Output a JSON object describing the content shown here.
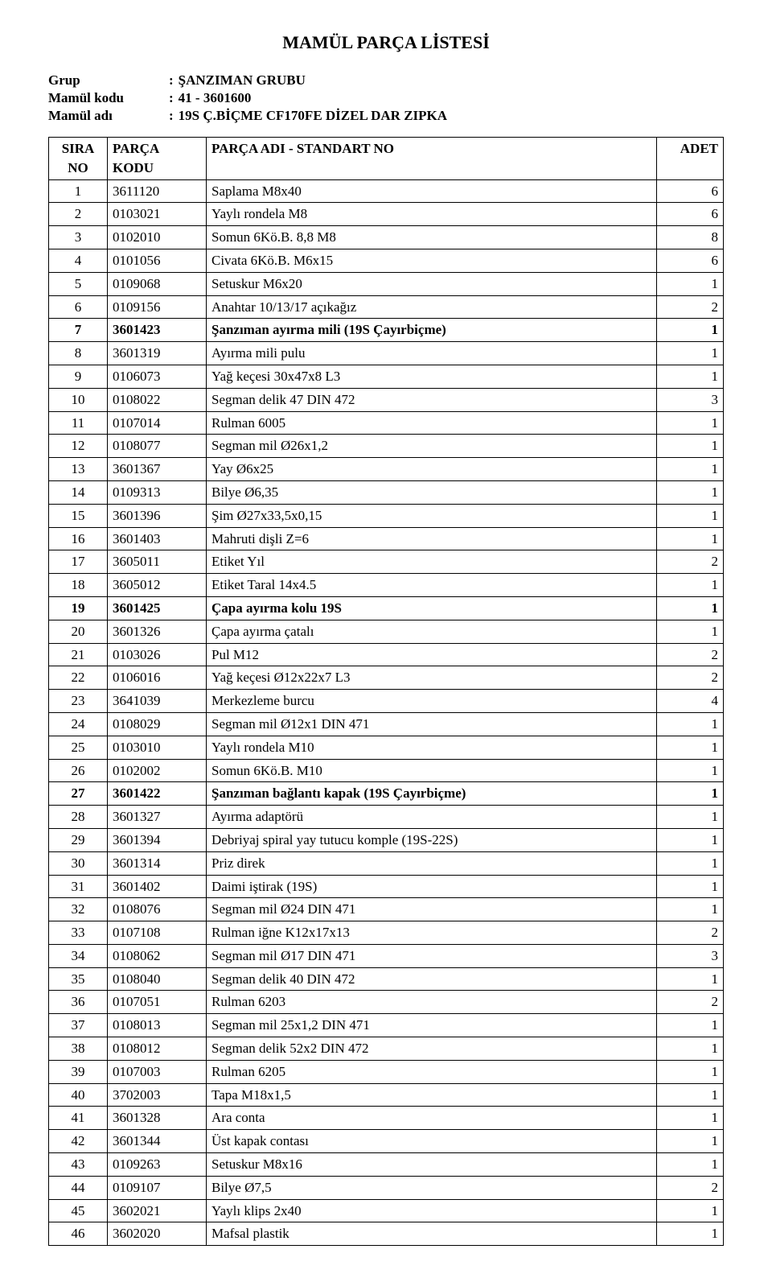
{
  "title": "MAMÜL PARÇA LİSTESİ",
  "meta": {
    "grup_label": "Grup",
    "grup_value": "ŞANZIMAN GRUBU",
    "mamul_kodu_label": "Mamül kodu",
    "mamul_kodu_value": "41 - 3601600",
    "mamul_adi_label": "Mamül adı",
    "mamul_adi_value": "19S Ç.BİÇME CF170FE DİZEL DAR ZIPKA"
  },
  "table": {
    "headers": {
      "sira": "SIRA NO",
      "kodu": "PARÇA KODU",
      "adi": "PARÇA ADI   -   STANDART NO",
      "adet": "ADET"
    },
    "rows": [
      {
        "no": "1",
        "kodu": "3611120",
        "adi": "Saplama M8x40",
        "adet": "6",
        "bold": false
      },
      {
        "no": "2",
        "kodu": "0103021",
        "adi": "Yaylı rondela M8",
        "adet": "6",
        "bold": false
      },
      {
        "no": "3",
        "kodu": "0102010",
        "adi": "Somun 6Kö.B. 8,8 M8",
        "adet": "8",
        "bold": false
      },
      {
        "no": "4",
        "kodu": "0101056",
        "adi": "Civata 6Kö.B. M6x15",
        "adet": "6",
        "bold": false
      },
      {
        "no": "5",
        "kodu": "0109068",
        "adi": "Setuskur M6x20",
        "adet": "1",
        "bold": false
      },
      {
        "no": "6",
        "kodu": "0109156",
        "adi": "Anahtar 10/13/17 açıkağız",
        "adet": "2",
        "bold": false
      },
      {
        "no": "7",
        "kodu": "3601423",
        "adi": "Şanzıman ayırma mili (19S Çayırbiçme)",
        "adet": "1",
        "bold": true
      },
      {
        "no": "8",
        "kodu": "3601319",
        "adi": "Ayırma mili pulu",
        "adet": "1",
        "bold": false
      },
      {
        "no": "9",
        "kodu": "0106073",
        "adi": "Yağ keçesi 30x47x8 L3",
        "adet": "1",
        "bold": false
      },
      {
        "no": "10",
        "kodu": "0108022",
        "adi": "Segman delik 47 DIN 472",
        "adet": "3",
        "bold": false
      },
      {
        "no": "11",
        "kodu": "0107014",
        "adi": "Rulman 6005",
        "adet": "1",
        "bold": false
      },
      {
        "no": "12",
        "kodu": "0108077",
        "adi": "Segman mil Ø26x1,2",
        "adet": "1",
        "bold": false
      },
      {
        "no": "13",
        "kodu": "3601367",
        "adi": "Yay Ø6x25",
        "adet": "1",
        "bold": false
      },
      {
        "no": "14",
        "kodu": "0109313",
        "adi": "Bilye Ø6,35",
        "adet": "1",
        "bold": false
      },
      {
        "no": "15",
        "kodu": "3601396",
        "adi": "Şim Ø27x33,5x0,15",
        "adet": "1",
        "bold": false
      },
      {
        "no": "16",
        "kodu": "3601403",
        "adi": "Mahruti dişli Z=6",
        "adet": "1",
        "bold": false
      },
      {
        "no": "17",
        "kodu": "3605011",
        "adi": "Etiket Yıl",
        "adet": "2",
        "bold": false
      },
      {
        "no": "18",
        "kodu": "3605012",
        "adi": "Etiket Taral 14x4.5",
        "adet": "1",
        "bold": false
      },
      {
        "no": "19",
        "kodu": "3601425",
        "adi": "Çapa ayırma kolu 19S",
        "adet": "1",
        "bold": true
      },
      {
        "no": "20",
        "kodu": "3601326",
        "adi": "Çapa ayırma çatalı",
        "adet": "1",
        "bold": false
      },
      {
        "no": "21",
        "kodu": "0103026",
        "adi": "Pul M12",
        "adet": "2",
        "bold": false
      },
      {
        "no": "22",
        "kodu": "0106016",
        "adi": "Yağ keçesi Ø12x22x7 L3",
        "adet": "2",
        "bold": false
      },
      {
        "no": "23",
        "kodu": "3641039",
        "adi": "Merkezleme burcu",
        "adet": "4",
        "bold": false
      },
      {
        "no": "24",
        "kodu": "0108029",
        "adi": "Segman mil Ø12x1 DIN 471",
        "adet": "1",
        "bold": false
      },
      {
        "no": "25",
        "kodu": "0103010",
        "adi": "Yaylı rondela M10",
        "adet": "1",
        "bold": false
      },
      {
        "no": "26",
        "kodu": "0102002",
        "adi": "Somun 6Kö.B. M10",
        "adet": "1",
        "bold": false
      },
      {
        "no": "27",
        "kodu": "3601422",
        "adi": "Şanzıman bağlantı kapak (19S Çayırbiçme)",
        "adet": "1",
        "bold": true
      },
      {
        "no": "28",
        "kodu": "3601327",
        "adi": "Ayırma adaptörü",
        "adet": "1",
        "bold": false
      },
      {
        "no": "29",
        "kodu": "3601394",
        "adi": "Debriyaj spiral yay tutucu komple (19S-22S)",
        "adet": "1",
        "bold": false
      },
      {
        "no": "30",
        "kodu": "3601314",
        "adi": "Priz direk",
        "adet": "1",
        "bold": false
      },
      {
        "no": "31",
        "kodu": "3601402",
        "adi": "Daimi iştirak (19S)",
        "adet": "1",
        "bold": false
      },
      {
        "no": "32",
        "kodu": "0108076",
        "adi": "Segman mil Ø24 DIN 471",
        "adet": "1",
        "bold": false
      },
      {
        "no": "33",
        "kodu": "0107108",
        "adi": "Rulman iğne K12x17x13",
        "adet": "2",
        "bold": false
      },
      {
        "no": "34",
        "kodu": "0108062",
        "adi": "Segman mil Ø17 DIN 471",
        "adet": "3",
        "bold": false
      },
      {
        "no": "35",
        "kodu": "0108040",
        "adi": "Segman delik 40 DIN 472",
        "adet": "1",
        "bold": false
      },
      {
        "no": "36",
        "kodu": "0107051",
        "adi": "Rulman 6203",
        "adet": "2",
        "bold": false
      },
      {
        "no": "37",
        "kodu": "0108013",
        "adi": "Segman mil 25x1,2 DIN 471",
        "adet": "1",
        "bold": false
      },
      {
        "no": "38",
        "kodu": "0108012",
        "adi": "Segman delik 52x2 DIN 472",
        "adet": "1",
        "bold": false
      },
      {
        "no": "39",
        "kodu": "0107003",
        "adi": "Rulman 6205",
        "adet": "1",
        "bold": false
      },
      {
        "no": "40",
        "kodu": "3702003",
        "adi": "Tapa M18x1,5",
        "adet": "1",
        "bold": false
      },
      {
        "no": "41",
        "kodu": "3601328",
        "adi": "Ara conta",
        "adet": "1",
        "bold": false
      },
      {
        "no": "42",
        "kodu": "3601344",
        "adi": "Üst kapak contası",
        "adet": "1",
        "bold": false
      },
      {
        "no": "43",
        "kodu": "0109263",
        "adi": "Setuskur M8x16",
        "adet": "1",
        "bold": false
      },
      {
        "no": "44",
        "kodu": "0109107",
        "adi": "Bilye Ø7,5",
        "adet": "2",
        "bold": false
      },
      {
        "no": "45",
        "kodu": "3602021",
        "adi": "Yaylı klips 2x40",
        "adet": "1",
        "bold": false
      },
      {
        "no": "46",
        "kodu": "3602020",
        "adi": "Mafsal plastik",
        "adet": "1",
        "bold": false
      }
    ]
  }
}
